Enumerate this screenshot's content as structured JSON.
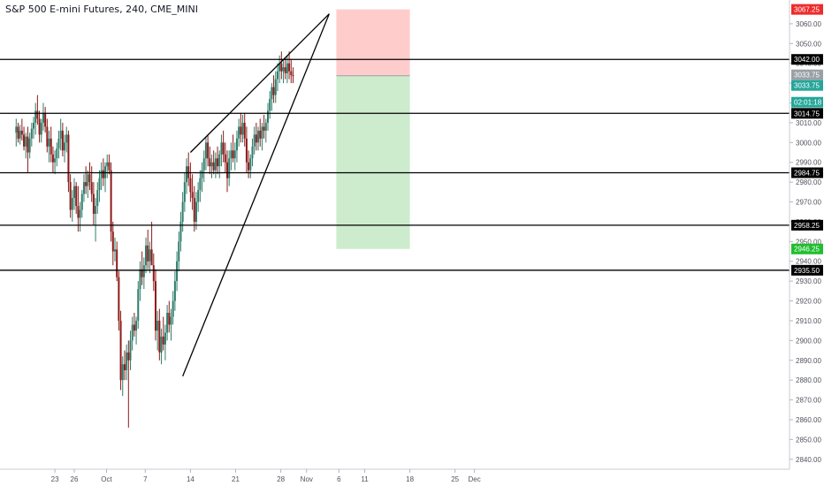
{
  "title": "S&P 500 E-mini Futures, 240, CME_MINI",
  "chart_data": {
    "type": "candlestick",
    "ylim": [
      2835,
      3072
    ],
    "x_ticks": [
      {
        "day": 7,
        "label": "23"
      },
      {
        "day": 10,
        "label": "26"
      },
      {
        "day": 15,
        "label": "Oct"
      },
      {
        "day": 21,
        "label": "7"
      },
      {
        "day": 28,
        "label": "14"
      },
      {
        "day": 35,
        "label": "21"
      },
      {
        "day": 42,
        "label": "28"
      },
      {
        "day": 46,
        "label": "Nov"
      },
      {
        "day": 51,
        "label": "6"
      },
      {
        "day": 55,
        "label": "11"
      },
      {
        "day": 62,
        "label": "18"
      },
      {
        "day": 69,
        "label": "25"
      },
      {
        "day": 72,
        "label": "Dec"
      }
    ],
    "y_ticks": [
      2840,
      2850,
      2860,
      2870,
      2880,
      2890,
      2900,
      2910,
      2920,
      2930,
      2940,
      2950,
      2960,
      2970,
      2980,
      2990,
      3000,
      3010,
      3020,
      3030,
      3040,
      3050,
      3060
    ],
    "horizontal_levels": [
      {
        "price": 3042.0,
        "label": "3042.00"
      },
      {
        "price": 3014.75,
        "label": "3014.75"
      },
      {
        "price": 2984.75,
        "label": "2984.75"
      },
      {
        "price": 2958.25,
        "label": "2958.25"
      },
      {
        "price": 2935.5,
        "label": "2935.50"
      }
    ],
    "price_labels": [
      {
        "price": 3067.25,
        "label": "3067.25",
        "color": "#ef2b2b"
      },
      {
        "price": 3033.75,
        "label": "3033.75",
        "color": "#9aa0a6"
      },
      {
        "price": 3033.75,
        "label": "3033.75",
        "color": "#26a69a"
      },
      {
        "price": 3027.5,
        "label": "02:01:18",
        "color": "#26a69a"
      },
      {
        "price": 2946.25,
        "label": "2946.25",
        "color": "#1fbe2f"
      }
    ],
    "trendlines": [
      {
        "from": {
          "day": 28.0,
          "price": 2995
        },
        "to": {
          "day": 49.5,
          "price": 3065
        }
      },
      {
        "from": {
          "day": 26.8,
          "price": 2882
        },
        "to": {
          "day": 49.5,
          "price": 3065
        }
      }
    ],
    "position": {
      "entry": 3033.75,
      "stop": 3067.25,
      "target": 2946.25,
      "from_day": 50.6,
      "to_day": 62.0
    },
    "candles": [
      {
        "d": 1.0,
        "o": 3005,
        "h": 3012,
        "l": 2998,
        "c": 3008
      },
      {
        "d": 1.3,
        "o": 3008,
        "h": 3010,
        "l": 3000,
        "c": 3002
      },
      {
        "d": 1.6,
        "o": 3002,
        "h": 3009,
        "l": 2999,
        "c": 3006
      },
      {
        "d": 1.9,
        "o": 3006,
        "h": 3012,
        "l": 3001,
        "c": 3004
      },
      {
        "d": 2.2,
        "o": 3004,
        "h": 3008,
        "l": 2996,
        "c": 2998
      },
      {
        "d": 2.5,
        "o": 2998,
        "h": 3005,
        "l": 2992,
        "c": 3003
      },
      {
        "d": 2.8,
        "o": 3003,
        "h": 3008,
        "l": 2985,
        "c": 2995
      },
      {
        "d": 3.1,
        "o": 2995,
        "h": 3005,
        "l": 2992,
        "c": 3002
      },
      {
        "d": 3.4,
        "o": 3002,
        "h": 3010,
        "l": 2998,
        "c": 3007
      },
      {
        "d": 3.7,
        "o": 3007,
        "h": 3013,
        "l": 3002,
        "c": 3010
      },
      {
        "d": 4.0,
        "o": 3010,
        "h": 3020,
        "l": 3004,
        "c": 3016
      },
      {
        "d": 4.3,
        "o": 3016,
        "h": 3024,
        "l": 3009,
        "c": 3012
      },
      {
        "d": 4.6,
        "o": 3012,
        "h": 3016,
        "l": 3000,
        "c": 3004
      },
      {
        "d": 4.9,
        "o": 3004,
        "h": 3012,
        "l": 3000,
        "c": 3010
      },
      {
        "d": 5.2,
        "o": 3010,
        "h": 3020,
        "l": 3006,
        "c": 3015
      },
      {
        "d": 5.5,
        "o": 3015,
        "h": 3018,
        "l": 3005,
        "c": 3008
      },
      {
        "d": 5.8,
        "o": 3008,
        "h": 3012,
        "l": 2995,
        "c": 2998
      },
      {
        "d": 6.1,
        "o": 2998,
        "h": 3006,
        "l": 2990,
        "c": 3002
      },
      {
        "d": 6.4,
        "o": 3002,
        "h": 3008,
        "l": 2990,
        "c": 2994
      },
      {
        "d": 6.7,
        "o": 2994,
        "h": 2998,
        "l": 2985,
        "c": 2990
      },
      {
        "d": 7.0,
        "o": 2990,
        "h": 2996,
        "l": 2984,
        "c": 2992
      },
      {
        "d": 7.3,
        "o": 2992,
        "h": 3000,
        "l": 2988,
        "c": 2997
      },
      {
        "d": 7.6,
        "o": 2997,
        "h": 3006,
        "l": 2992,
        "c": 3002
      },
      {
        "d": 7.9,
        "o": 3002,
        "h": 3012,
        "l": 2996,
        "c": 3006
      },
      {
        "d": 8.2,
        "o": 3006,
        "h": 3010,
        "l": 2993,
        "c": 2996
      },
      {
        "d": 8.5,
        "o": 2996,
        "h": 3004,
        "l": 2990,
        "c": 3000
      },
      {
        "d": 8.8,
        "o": 3000,
        "h": 3008,
        "l": 2995,
        "c": 3004
      },
      {
        "d": 9.1,
        "o": 3004,
        "h": 3006,
        "l": 2975,
        "c": 2980
      },
      {
        "d": 9.4,
        "o": 2980,
        "h": 2984,
        "l": 2962,
        "c": 2966
      },
      {
        "d": 9.7,
        "o": 2966,
        "h": 2976,
        "l": 2960,
        "c": 2972
      },
      {
        "d": 10.0,
        "o": 2972,
        "h": 2982,
        "l": 2966,
        "c": 2978
      },
      {
        "d": 10.3,
        "o": 2978,
        "h": 2980,
        "l": 2964,
        "c": 2968
      },
      {
        "d": 10.6,
        "o": 2968,
        "h": 2978,
        "l": 2955,
        "c": 2962
      },
      {
        "d": 10.9,
        "o": 2962,
        "h": 2970,
        "l": 2955,
        "c": 2966
      },
      {
        "d": 11.2,
        "o": 2966,
        "h": 2976,
        "l": 2962,
        "c": 2974
      },
      {
        "d": 11.5,
        "o": 2974,
        "h": 2984,
        "l": 2970,
        "c": 2980
      },
      {
        "d": 11.8,
        "o": 2980,
        "h": 2988,
        "l": 2974,
        "c": 2978
      },
      {
        "d": 12.1,
        "o": 2978,
        "h": 2986,
        "l": 2972,
        "c": 2984
      },
      {
        "d": 12.4,
        "o": 2984,
        "h": 2990,
        "l": 2976,
        "c": 2980
      },
      {
        "d": 12.7,
        "o": 2980,
        "h": 2988,
        "l": 2970,
        "c": 2974
      },
      {
        "d": 13.0,
        "o": 2974,
        "h": 2980,
        "l": 2958,
        "c": 2964
      },
      {
        "d": 13.3,
        "o": 2964,
        "h": 2972,
        "l": 2950,
        "c": 2968
      },
      {
        "d": 13.6,
        "o": 2968,
        "h": 2980,
        "l": 2964,
        "c": 2976
      },
      {
        "d": 13.9,
        "o": 2976,
        "h": 2986,
        "l": 2970,
        "c": 2982
      },
      {
        "d": 14.2,
        "o": 2982,
        "h": 2990,
        "l": 2976,
        "c": 2986
      },
      {
        "d": 14.5,
        "o": 2986,
        "h": 2992,
        "l": 2978,
        "c": 2982
      },
      {
        "d": 14.8,
        "o": 2982,
        "h": 2990,
        "l": 2975,
        "c": 2988
      },
      {
        "d": 15.1,
        "o": 2988,
        "h": 2994,
        "l": 2982,
        "c": 2990
      },
      {
        "d": 15.4,
        "o": 2990,
        "h": 2994,
        "l": 2984,
        "c": 2986
      },
      {
        "d": 15.7,
        "o": 2986,
        "h": 2990,
        "l": 2950,
        "c": 2955
      },
      {
        "d": 16.0,
        "o": 2955,
        "h": 2960,
        "l": 2938,
        "c": 2945
      },
      {
        "d": 16.3,
        "o": 2945,
        "h": 2952,
        "l": 2940,
        "c": 2946
      },
      {
        "d": 16.6,
        "o": 2946,
        "h": 2950,
        "l": 2930,
        "c": 2932
      },
      {
        "d": 16.9,
        "o": 2932,
        "h": 2935,
        "l": 2905,
        "c": 2910
      },
      {
        "d": 17.2,
        "o": 2910,
        "h": 2915,
        "l": 2875,
        "c": 2880
      },
      {
        "d": 17.5,
        "o": 2880,
        "h": 2892,
        "l": 2872,
        "c": 2888
      },
      {
        "d": 17.8,
        "o": 2888,
        "h": 2895,
        "l": 2880,
        "c": 2885
      },
      {
        "d": 18.1,
        "o": 2885,
        "h": 2898,
        "l": 2880,
        "c": 2894
      },
      {
        "d": 18.4,
        "o": 2894,
        "h": 2900,
        "l": 2856,
        "c": 2890
      },
      {
        "d": 18.7,
        "o": 2890,
        "h": 2905,
        "l": 2885,
        "c": 2900
      },
      {
        "d": 19.0,
        "o": 2900,
        "h": 2912,
        "l": 2895,
        "c": 2908
      },
      {
        "d": 19.3,
        "o": 2908,
        "h": 2914,
        "l": 2902,
        "c": 2905
      },
      {
        "d": 19.6,
        "o": 2905,
        "h": 2912,
        "l": 2898,
        "c": 2910
      },
      {
        "d": 19.9,
        "o": 2910,
        "h": 2930,
        "l": 2906,
        "c": 2926
      },
      {
        "d": 20.2,
        "o": 2926,
        "h": 2940,
        "l": 2920,
        "c": 2936
      },
      {
        "d": 20.5,
        "o": 2936,
        "h": 2945,
        "l": 2928,
        "c": 2932
      },
      {
        "d": 20.8,
        "o": 2932,
        "h": 2942,
        "l": 2926,
        "c": 2938
      },
      {
        "d": 21.1,
        "o": 2938,
        "h": 2952,
        "l": 2934,
        "c": 2948
      },
      {
        "d": 21.4,
        "o": 2948,
        "h": 2956,
        "l": 2936,
        "c": 2940
      },
      {
        "d": 21.7,
        "o": 2940,
        "h": 2950,
        "l": 2934,
        "c": 2946
      },
      {
        "d": 22.0,
        "o": 2946,
        "h": 2960,
        "l": 2940,
        "c": 2938
      },
      {
        "d": 22.3,
        "o": 2938,
        "h": 2944,
        "l": 2925,
        "c": 2930
      },
      {
        "d": 22.6,
        "o": 2930,
        "h": 2936,
        "l": 2900,
        "c": 2905
      },
      {
        "d": 22.9,
        "o": 2905,
        "h": 2915,
        "l": 2895,
        "c": 2910
      },
      {
        "d": 23.2,
        "o": 2910,
        "h": 2916,
        "l": 2890,
        "c": 2894
      },
      {
        "d": 23.5,
        "o": 2894,
        "h": 2906,
        "l": 2888,
        "c": 2902
      },
      {
        "d": 23.8,
        "o": 2902,
        "h": 2912,
        "l": 2895,
        "c": 2898
      },
      {
        "d": 24.1,
        "o": 2898,
        "h": 2908,
        "l": 2890,
        "c": 2904
      },
      {
        "d": 24.4,
        "o": 2904,
        "h": 2918,
        "l": 2900,
        "c": 2914
      },
      {
        "d": 24.7,
        "o": 2914,
        "h": 2920,
        "l": 2904,
        "c": 2908
      },
      {
        "d": 25.0,
        "o": 2908,
        "h": 2916,
        "l": 2900,
        "c": 2912
      },
      {
        "d": 25.3,
        "o": 2912,
        "h": 2925,
        "l": 2908,
        "c": 2920
      },
      {
        "d": 25.6,
        "o": 2920,
        "h": 2935,
        "l": 2915,
        "c": 2930
      },
      {
        "d": 25.9,
        "o": 2930,
        "h": 2945,
        "l": 2925,
        "c": 2940
      },
      {
        "d": 26.2,
        "o": 2940,
        "h": 2955,
        "l": 2935,
        "c": 2950
      },
      {
        "d": 26.5,
        "o": 2950,
        "h": 2965,
        "l": 2945,
        "c": 2960
      },
      {
        "d": 26.8,
        "o": 2960,
        "h": 2975,
        "l": 2955,
        "c": 2970
      },
      {
        "d": 27.1,
        "o": 2970,
        "h": 2985,
        "l": 2965,
        "c": 2980
      },
      {
        "d": 27.4,
        "o": 2980,
        "h": 2992,
        "l": 2974,
        "c": 2988
      },
      {
        "d": 27.7,
        "o": 2988,
        "h": 2995,
        "l": 2978,
        "c": 2982
      },
      {
        "d": 28.0,
        "o": 2982,
        "h": 2990,
        "l": 2970,
        "c": 2975
      },
      {
        "d": 28.3,
        "o": 2975,
        "h": 2984,
        "l": 2966,
        "c": 2972
      },
      {
        "d": 28.6,
        "o": 2972,
        "h": 2978,
        "l": 2955,
        "c": 2960
      },
      {
        "d": 28.9,
        "o": 2960,
        "h": 2975,
        "l": 2956,
        "c": 2970
      },
      {
        "d": 29.2,
        "o": 2970,
        "h": 2980,
        "l": 2965,
        "c": 2976
      },
      {
        "d": 29.5,
        "o": 2976,
        "h": 2986,
        "l": 2970,
        "c": 2982
      },
      {
        "d": 29.8,
        "o": 2982,
        "h": 2990,
        "l": 2975,
        "c": 2986
      },
      {
        "d": 30.1,
        "o": 2986,
        "h": 2996,
        "l": 2980,
        "c": 2992
      },
      {
        "d": 30.4,
        "o": 2992,
        "h": 3003,
        "l": 2986,
        "c": 3000
      },
      {
        "d": 30.7,
        "o": 3000,
        "h": 3004,
        "l": 2988,
        "c": 2992
      },
      {
        "d": 31.0,
        "o": 2992,
        "h": 2998,
        "l": 2984,
        "c": 2988
      },
      {
        "d": 31.3,
        "o": 2988,
        "h": 2994,
        "l": 2982,
        "c": 2990
      },
      {
        "d": 31.6,
        "o": 2990,
        "h": 2996,
        "l": 2984,
        "c": 2986
      },
      {
        "d": 31.9,
        "o": 2986,
        "h": 2995,
        "l": 2982,
        "c": 2992
      },
      {
        "d": 32.2,
        "o": 2992,
        "h": 2998,
        "l": 2984,
        "c": 2988
      },
      {
        "d": 32.5,
        "o": 2988,
        "h": 2996,
        "l": 2982,
        "c": 2994
      },
      {
        "d": 32.8,
        "o": 2994,
        "h": 3004,
        "l": 2988,
        "c": 3000
      },
      {
        "d": 33.1,
        "o": 3000,
        "h": 3006,
        "l": 2990,
        "c": 2994
      },
      {
        "d": 33.4,
        "o": 2994,
        "h": 3000,
        "l": 2985,
        "c": 2990
      },
      {
        "d": 33.7,
        "o": 2990,
        "h": 2996,
        "l": 2975,
        "c": 2982
      },
      {
        "d": 34.0,
        "o": 2982,
        "h": 2996,
        "l": 2978,
        "c": 2992
      },
      {
        "d": 34.3,
        "o": 2992,
        "h": 3000,
        "l": 2986,
        "c": 2996
      },
      {
        "d": 34.6,
        "o": 2996,
        "h": 3004,
        "l": 2990,
        "c": 2992
      },
      {
        "d": 34.9,
        "o": 2992,
        "h": 3000,
        "l": 2986,
        "c": 2996
      },
      {
        "d": 35.2,
        "o": 2996,
        "h": 3006,
        "l": 2990,
        "c": 3002
      },
      {
        "d": 35.5,
        "o": 3002,
        "h": 3012,
        "l": 2998,
        "c": 3008
      },
      {
        "d": 35.8,
        "o": 3008,
        "h": 3015,
        "l": 3000,
        "c": 3004
      },
      {
        "d": 36.1,
        "o": 3004,
        "h": 3014,
        "l": 3000,
        "c": 3010
      },
      {
        "d": 36.4,
        "o": 3010,
        "h": 3015,
        "l": 2998,
        "c": 3002
      },
      {
        "d": 36.7,
        "o": 3002,
        "h": 3008,
        "l": 2985,
        "c": 2990
      },
      {
        "d": 37.0,
        "o": 2990,
        "h": 2996,
        "l": 2982,
        "c": 2986
      },
      {
        "d": 37.3,
        "o": 2986,
        "h": 2994,
        "l": 2982,
        "c": 2992
      },
      {
        "d": 37.6,
        "o": 2992,
        "h": 3002,
        "l": 2988,
        "c": 2998
      },
      {
        "d": 37.9,
        "o": 2998,
        "h": 3008,
        "l": 2994,
        "c": 3004
      },
      {
        "d": 38.2,
        "o": 3004,
        "h": 3010,
        "l": 2996,
        "c": 3000
      },
      {
        "d": 38.5,
        "o": 3000,
        "h": 3008,
        "l": 2996,
        "c": 3006
      },
      {
        "d": 38.8,
        "o": 3006,
        "h": 3012,
        "l": 2998,
        "c": 3002
      },
      {
        "d": 39.1,
        "o": 3002,
        "h": 3010,
        "l": 2996,
        "c": 3008
      },
      {
        "d": 39.4,
        "o": 3008,
        "h": 3014,
        "l": 3002,
        "c": 3006
      },
      {
        "d": 39.7,
        "o": 3006,
        "h": 3012,
        "l": 3000,
        "c": 3010
      },
      {
        "d": 40.0,
        "o": 3010,
        "h": 3020,
        "l": 3006,
        "c": 3016
      },
      {
        "d": 40.3,
        "o": 3016,
        "h": 3026,
        "l": 3012,
        "c": 3022
      },
      {
        "d": 40.6,
        "o": 3022,
        "h": 3030,
        "l": 3016,
        "c": 3028
      },
      {
        "d": 40.9,
        "o": 3028,
        "h": 3034,
        "l": 3020,
        "c": 3024
      },
      {
        "d": 41.2,
        "o": 3024,
        "h": 3036,
        "l": 3020,
        "c": 3032
      },
      {
        "d": 41.5,
        "o": 3032,
        "h": 3040,
        "l": 3026,
        "c": 3036
      },
      {
        "d": 41.8,
        "o": 3036,
        "h": 3044,
        "l": 3030,
        "c": 3040
      },
      {
        "d": 42.1,
        "o": 3040,
        "h": 3046,
        "l": 3032,
        "c": 3036
      },
      {
        "d": 42.4,
        "o": 3036,
        "h": 3042,
        "l": 3030,
        "c": 3038
      },
      {
        "d": 42.7,
        "o": 3038,
        "h": 3043,
        "l": 3032,
        "c": 3035
      },
      {
        "d": 43.0,
        "o": 3035,
        "h": 3044,
        "l": 3030,
        "c": 3040
      },
      {
        "d": 43.3,
        "o": 3040,
        "h": 3046,
        "l": 3032,
        "c": 3036
      },
      {
        "d": 43.6,
        "o": 3036,
        "h": 3042,
        "l": 3030,
        "c": 3034
      },
      {
        "d": 43.9,
        "o": 3034,
        "h": 3038,
        "l": 3030,
        "c": 3033.75
      }
    ]
  }
}
